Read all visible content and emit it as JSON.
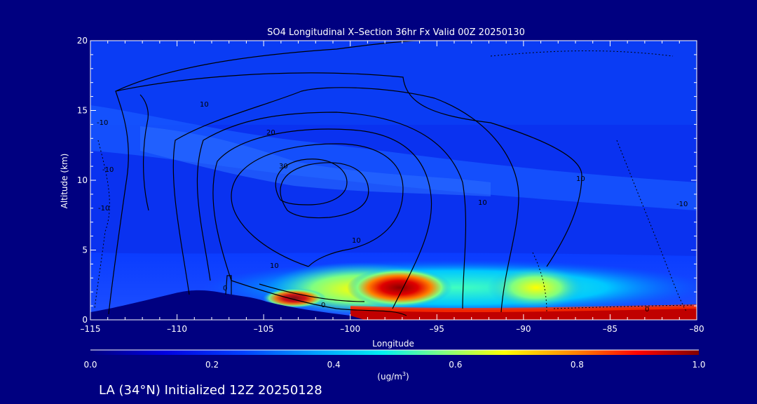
{
  "chart_data": {
    "type": "heatmap",
    "title": "SO4 Longitudinal X–Section 36hr  Fx Valid 00Z 20250130",
    "xlabel": "Longitude",
    "ylabel": "Altitude (km)",
    "xlim": [
      -115,
      -80
    ],
    "ylim": [
      0,
      20
    ],
    "x_ticks": [
      "–115",
      "–110",
      "–105",
      "–100",
      "–95",
      "–90",
      "–85",
      "–80"
    ],
    "x_tick_values": [
      -115,
      -110,
      -105,
      -100,
      -95,
      -90,
      -85,
      -80
    ],
    "y_ticks": [
      "0",
      "5",
      "10",
      "15",
      "20"
    ],
    "y_tick_values": [
      0,
      5,
      10,
      15,
      20
    ],
    "colorbar": {
      "min": 0.0,
      "max": 1.0,
      "ticks": [
        "0.0",
        "0.2",
        "0.4",
        "0.6",
        "0.8",
        "1.0"
      ],
      "tick_values": [
        0.0,
        0.2,
        0.4,
        0.6,
        0.8,
        1.0
      ],
      "units_label": "(ug/m",
      "units_sup": "3",
      "units_close": ")"
    },
    "contour_labels": [
      "10",
      "20",
      "30",
      "10",
      "10",
      "10",
      "0",
      "0",
      "0",
      "10",
      "-10",
      "-10",
      "-10",
      "-10"
    ],
    "colors": [
      "#000080",
      "#0000c8",
      "#0040ff",
      "#00b0ff",
      "#00ffe0",
      "#80ff80",
      "#ffff00",
      "#ff8000",
      "#ff0000",
      "#800000"
    ]
  },
  "footer": "LA (34°N) Initialized 12Z 20250128"
}
